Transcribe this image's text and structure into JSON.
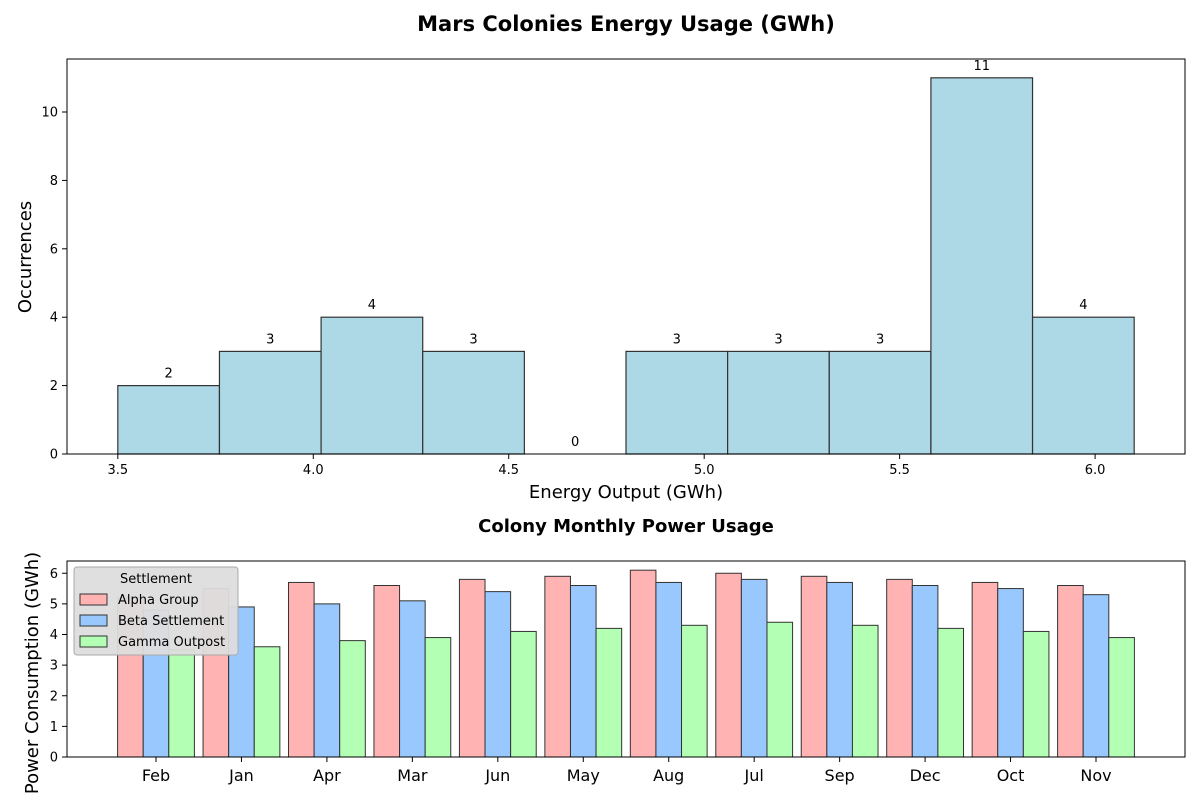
{
  "chart_data": [
    {
      "type": "bar",
      "title": "Mars Colonies Energy Usage (GWh)",
      "xlabel": "Energy Output (GWh)",
      "ylabel": "Occurrences",
      "bins": [
        {
          "x0": 3.5,
          "x1": 3.76,
          "count": 2
        },
        {
          "x0": 3.76,
          "x1": 4.02,
          "count": 3
        },
        {
          "x0": 4.02,
          "x1": 4.28,
          "count": 4
        },
        {
          "x0": 4.28,
          "x1": 4.54,
          "count": 3
        },
        {
          "x0": 4.54,
          "x1": 4.8,
          "count": 0
        },
        {
          "x0": 4.8,
          "x1": 5.06,
          "count": 3
        },
        {
          "x0": 5.06,
          "x1": 5.32,
          "count": 3
        },
        {
          "x0": 5.32,
          "x1": 5.58,
          "count": 3
        },
        {
          "x0": 5.58,
          "x1": 5.84,
          "count": 11
        },
        {
          "x0": 5.84,
          "x1": 6.1,
          "count": 4
        }
      ],
      "xticks": [
        "3.5",
        "4.0",
        "4.5",
        "5.0",
        "5.5",
        "6.0"
      ],
      "yticks": [
        "0",
        "2",
        "4",
        "6",
        "8",
        "10"
      ],
      "xlim": [
        3.37,
        6.23
      ],
      "ylim": [
        0,
        11.55
      ],
      "bar_color": "#add8e6",
      "edge_color": "#333333",
      "grid": false
    },
    {
      "type": "bar",
      "title": "Colony Monthly Power Usage",
      "xlabel": "",
      "ylabel": "Power Consumption (GWh)",
      "categories": [
        "Feb",
        "Jan",
        "Apr",
        "Mar",
        "Jun",
        "May",
        "Aug",
        "Jul",
        "Sep",
        "Dec",
        "Oct",
        "Nov"
      ],
      "series": [
        {
          "name": "Alpha Group",
          "color": "#ffb3b3",
          "values": [
            5.2,
            5.5,
            5.7,
            5.6,
            5.8,
            5.9,
            6.1,
            6.0,
            5.9,
            5.8,
            5.7,
            5.6
          ]
        },
        {
          "name": "Beta Settlement",
          "color": "#99c8ff",
          "values": [
            4.8,
            4.9,
            5.0,
            5.1,
            5.4,
            5.6,
            5.7,
            5.8,
            5.7,
            5.6,
            5.5,
            5.3
          ]
        },
        {
          "name": "Gamma Outpost",
          "color": "#b3ffb3",
          "values": [
            3.5,
            3.6,
            3.8,
            3.9,
            4.1,
            4.2,
            4.3,
            4.4,
            4.3,
            4.2,
            4.1,
            3.9
          ]
        }
      ],
      "yticks": [
        "0",
        "1",
        "2",
        "3",
        "4",
        "5",
        "6"
      ],
      "ylim": [
        0,
        6.4
      ],
      "legend_title": "Settlement",
      "legend_position": "upper-left",
      "grid": false
    }
  ]
}
